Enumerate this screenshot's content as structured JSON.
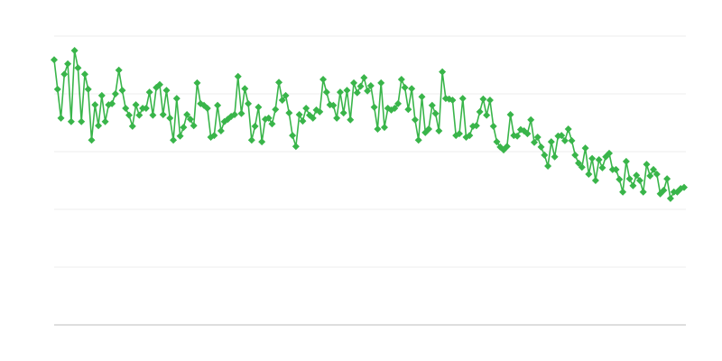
{
  "chart_data": {
    "type": "line",
    "title": "",
    "xlabel": "",
    "ylabel": "",
    "ylim": [
      0,
      5
    ],
    "grid": true,
    "legend": "none",
    "marker": "diamond",
    "color": "#39b54a",
    "series": [
      {
        "values": [
          4.59,
          4.08,
          3.58,
          4.34,
          4.52,
          3.52,
          4.75,
          4.45,
          3.52,
          4.34,
          4.08,
          3.2,
          3.81,
          3.45,
          3.97,
          3.52,
          3.81,
          3.83,
          4.0,
          4.41,
          4.06,
          3.75,
          3.63,
          3.44,
          3.81,
          3.63,
          3.75,
          3.75,
          4.03,
          3.63,
          4.11,
          4.16,
          3.64,
          4.06,
          3.58,
          3.2,
          3.92,
          3.27,
          3.42,
          3.64,
          3.56,
          3.45,
          4.19,
          3.83,
          3.8,
          3.75,
          3.25,
          3.28,
          3.8,
          3.36,
          3.52,
          3.56,
          3.61,
          3.64,
          4.3,
          3.66,
          4.09,
          3.83,
          3.2,
          3.44,
          3.77,
          3.17,
          3.56,
          3.58,
          3.48,
          3.73,
          4.2,
          3.89,
          3.97,
          3.67,
          3.28,
          3.09,
          3.64,
          3.53,
          3.75,
          3.63,
          3.58,
          3.72,
          3.69,
          4.25,
          4.03,
          3.81,
          3.8,
          3.58,
          4.03,
          3.67,
          4.06,
          3.55,
          4.19,
          4.02,
          4.13,
          4.28,
          4.05,
          4.14,
          3.77,
          3.39,
          4.19,
          3.42,
          3.75,
          3.72,
          3.75,
          3.83,
          4.25,
          4.11,
          3.73,
          4.09,
          3.55,
          3.2,
          3.95,
          3.33,
          3.39,
          3.8,
          3.66,
          3.36,
          4.38,
          3.92,
          3.91,
          3.89,
          3.28,
          3.31,
          3.92,
          3.25,
          3.28,
          3.44,
          3.45,
          3.69,
          3.91,
          3.63,
          3.89,
          3.44,
          3.17,
          3.08,
          3.03,
          3.09,
          3.64,
          3.28,
          3.27,
          3.38,
          3.36,
          3.31,
          3.55,
          3.16,
          3.25,
          3.08,
          2.94,
          2.75,
          3.17,
          2.91,
          3.27,
          3.28,
          3.19,
          3.39,
          3.19,
          2.94,
          2.8,
          2.73,
          3.06,
          2.61,
          2.88,
          2.5,
          2.86,
          2.72,
          2.91,
          2.97,
          2.69,
          2.69,
          2.52,
          2.3,
          2.83,
          2.53,
          2.41,
          2.59,
          2.5,
          2.3,
          2.78,
          2.58,
          2.69,
          2.61,
          2.27,
          2.33,
          2.53,
          2.19,
          2.3,
          2.3,
          2.36,
          2.38
        ]
      }
    ]
  }
}
